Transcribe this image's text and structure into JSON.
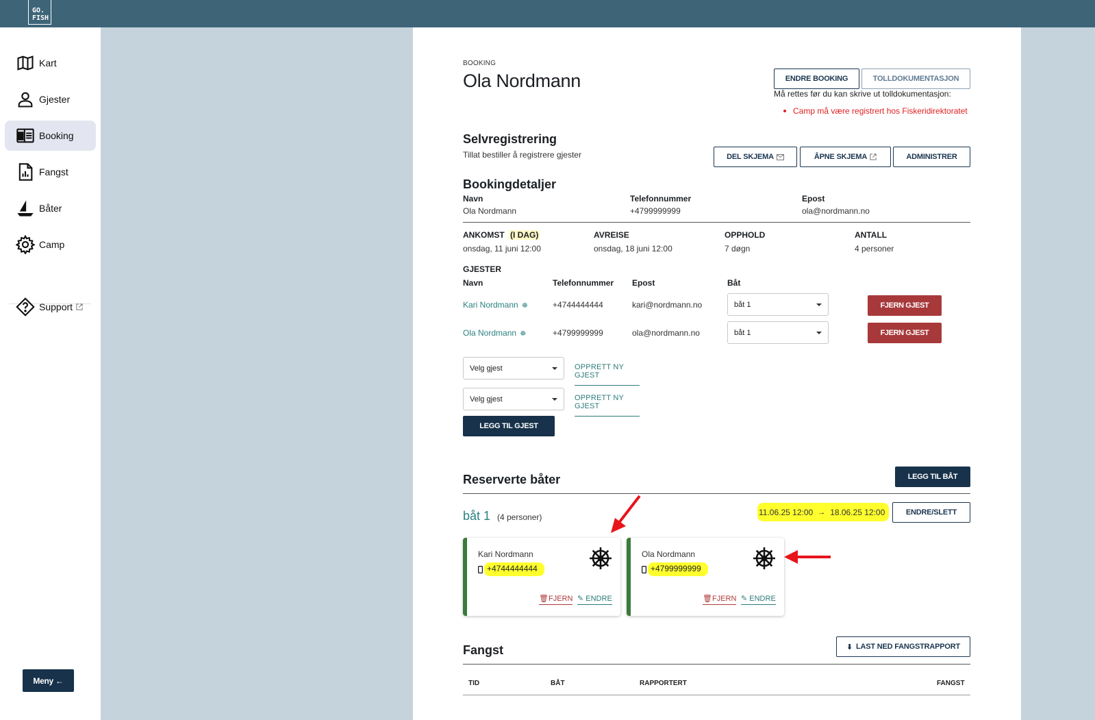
{
  "app": {
    "logo_text": "GO. FISH"
  },
  "sidebar": {
    "items": [
      {
        "label": "Kart",
        "icon": "map-icon"
      },
      {
        "label": "Gjester",
        "icon": "person-icon"
      },
      {
        "label": "Booking",
        "icon": "booking-icon",
        "active": true
      },
      {
        "label": "Fangst",
        "icon": "report-icon"
      },
      {
        "label": "Båter",
        "icon": "boat-icon"
      },
      {
        "label": "Camp",
        "icon": "gear-icon"
      },
      {
        "label": "Support",
        "icon": "support-icon"
      }
    ],
    "menu_label": "Meny ←"
  },
  "header": {
    "section_label": "BOOKING",
    "title": "Ola Nordmann",
    "edit_booking": "ENDRE BOOKING",
    "customs_doc": "TOLLDOKUMENTASJON",
    "warning_intro": "Må rettes før du kan skrive ut tolldokumentasjon:",
    "warning_item": "Camp må være registrert hos Fiskeridirektoratet"
  },
  "self_registration": {
    "title": "Selvregistrering",
    "subtitle": "Tillat bestiller å registrere gjester",
    "share_form": "DEL SKJEMA",
    "open_form": "ÅPNE SKJEMA",
    "administer": "ADMINISTRER"
  },
  "booking_details": {
    "title": "Bookingdetaljer",
    "name_label": "Navn",
    "name_value": "Ola Nordmann",
    "phone_label": "Telefonnummer",
    "phone_value": "+4799999999",
    "email_label": "Epost",
    "email_value": "ola@nordmann.no",
    "arrival_label": "ANKOMST",
    "arrival_badge": "(I DAG)",
    "arrival_value": "onsdag, 11 juni 12:00",
    "departure_label": "AVREISE",
    "departure_value": "onsdag, 18 juni 12:00",
    "stay_label": "OPPHOLD",
    "stay_value": "7 døgn",
    "count_label": "ANTALL",
    "count_value": "4 personer"
  },
  "guests": {
    "title": "GJESTER",
    "columns": [
      "Navn",
      "Telefonnummer",
      "Epost",
      "Båt"
    ],
    "rows": [
      {
        "name": "Kari Nordmann",
        "phone": "+4744444444",
        "email": "kari@nordmann.no",
        "boat": "båt 1",
        "remove": "FJERN GJEST"
      },
      {
        "name": "Ola Nordmann",
        "phone": "+4799999999",
        "email": "ola@nordmann.no",
        "boat": "båt 1",
        "remove": "FJERN GJEST"
      }
    ],
    "select_placeholder": "Velg gjest",
    "create_new": "OPPRETT NY GJEST",
    "add_guest": "LEGG TIL GJEST"
  },
  "boats": {
    "title": "Reserverte båter",
    "add_boat": "LEGG TIL BÅT",
    "boat_name": "båt 1",
    "boat_capacity": "(4 personer)",
    "start": "11.06.25 12:00",
    "arrow": "→",
    "end": "18.06.25 12:00",
    "edit_delete": "ENDRE/SLETT",
    "cards": [
      {
        "name": "Kari Nordmann",
        "phone": "+4744444444",
        "remove": "FJERN",
        "edit": "ENDRE"
      },
      {
        "name": "Ola Nordmann",
        "phone": "+4799999999",
        "remove": "FJERN",
        "edit": "ENDRE"
      }
    ]
  },
  "catch": {
    "title": "Fangst",
    "download": "LAST NED FANGSTRAPPORT",
    "columns": [
      "TID",
      "BÅT",
      "RAPPORTERT",
      "FANGST"
    ]
  },
  "colors": {
    "topbar": "#3e6478",
    "primary": "#17324a",
    "danger": "#a8393b",
    "teal": "#2c7a7a",
    "highlight": "#ffff2e",
    "annotation": "#e8141c"
  }
}
